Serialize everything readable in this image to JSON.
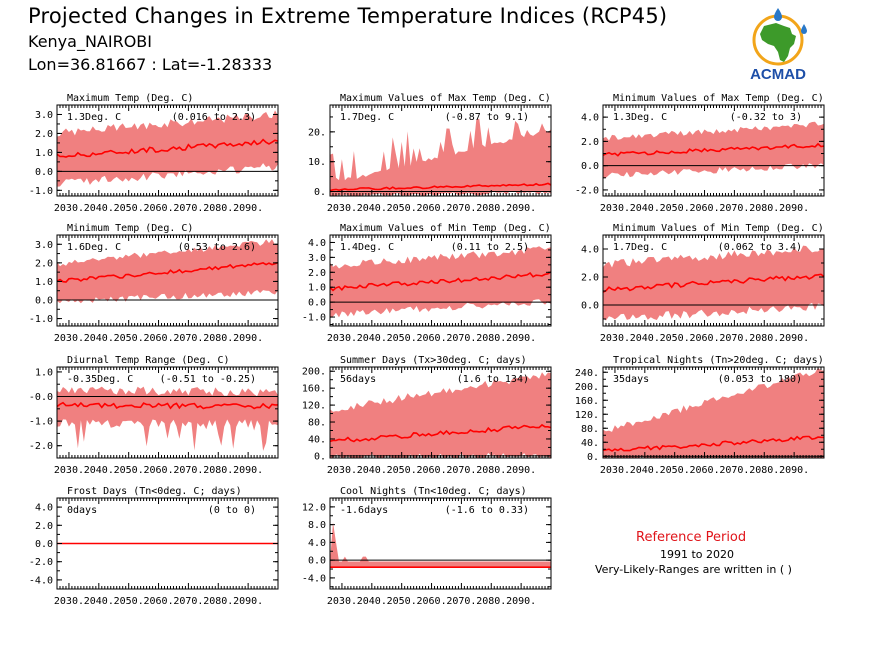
{
  "header": {
    "title": "Projected Changes in Extreme Temperature Indices (RCP45)",
    "station": "Kenya_NAIROBI",
    "coords": "Lon=36.81667 : Lat=-1.28333"
  },
  "logo": {
    "text": "ACMAD",
    "colors": {
      "text": "#1e4fa8",
      "africa": "#3d9a2a",
      "sun": "#f2a51a",
      "drop": "#2a78c8"
    }
  },
  "reference": {
    "title": "Reference Period",
    "years": "1991 to 2020",
    "note": "Very-Likely-Ranges are written in ( )"
  },
  "colors": {
    "band": "#f08080",
    "line": "#ff0000",
    "zero": "#000000"
  },
  "chart_data": [
    {
      "type": "area",
      "title": "Maximum Temp (Deg. C)",
      "change": "1.3Deg. C",
      "range": "(0.016 to 2.3)",
      "ylim": [
        -1.3,
        3.5
      ],
      "yticks": [
        -1.0,
        0.0,
        1.0,
        2.0,
        3.0
      ],
      "ytick_labels": [
        "-1.0",
        "0.0",
        "1.0",
        "2.0",
        "3.0"
      ],
      "xticks": [
        "2030.",
        "2040.",
        "2050.",
        "2060.",
        "2070.",
        "2080.",
        "2090."
      ],
      "x": [
        2026,
        2100
      ],
      "mean": [
        0.8,
        1.6
      ],
      "lower": [
        -0.4,
        0.5
      ],
      "upper": [
        1.8,
        2.8
      ],
      "noise": 0.45
    },
    {
      "type": "area",
      "title": "Maximum Values of Max Temp (Deg. C)",
      "change": "1.7Deg. C",
      "range": "(-0.87 to 9.1)",
      "ylim": [
        -1.5,
        29
      ],
      "yticks": [
        0,
        10,
        20
      ],
      "ytick_labels": [
        "0.",
        "10.",
        "20."
      ],
      "xticks": [
        "2030.",
        "2040.",
        "2050.",
        "2060.",
        "2070.",
        "2080.",
        "2090."
      ],
      "x": [
        2026,
        2100
      ],
      "mean": [
        0.6,
        2.5
      ],
      "lower": [
        -0.8,
        0.2
      ],
      "upper": [
        2,
        20
      ],
      "noise": 1.2,
      "spiky": true
    },
    {
      "type": "area",
      "title": "Minimum Values of Max Temp (Deg. C)",
      "change": "1.3Deg. C",
      "range": "(-0.32 to 3)",
      "ylim": [
        -2.5,
        5
      ],
      "yticks": [
        -2.0,
        0.0,
        2.0,
        4.0
      ],
      "ytick_labels": [
        "-2.0",
        "0.0",
        "2.0",
        "4.0"
      ],
      "xticks": [
        "2030.",
        "2040.",
        "2050.",
        "2060.",
        "2070.",
        "2080.",
        "2090."
      ],
      "x": [
        2026,
        2100
      ],
      "mean": [
        0.9,
        1.7
      ],
      "lower": [
        -0.6,
        0.3
      ],
      "upper": [
        2.0,
        3.2
      ],
      "noise": 0.5
    },
    {
      "type": "area",
      "title": "Minimum Temp (Deg. C)",
      "change": "1.6Deg. C",
      "range": "(0.53 to 2.6)",
      "ylim": [
        -1.4,
        3.5
      ],
      "yticks": [
        -1.0,
        0.0,
        1.0,
        2.0,
        3.0
      ],
      "ytick_labels": [
        "-1.0",
        "0.0",
        "1.0",
        "2.0",
        "3.0"
      ],
      "xticks": [
        "2030.",
        "2040.",
        "2050.",
        "2060.",
        "2070.",
        "2080.",
        "2090."
      ],
      "x": [
        2026,
        2100
      ],
      "mean": [
        1.0,
        2.0
      ],
      "lower": [
        0.1,
        0.6
      ],
      "upper": [
        1.8,
        3.0
      ],
      "noise": 0.35
    },
    {
      "type": "area",
      "title": "Maximum Values of Min Temp (Deg. C)",
      "change": "1.4Deg. C",
      "range": "(0.11 to 2.5)",
      "ylim": [
        -1.6,
        4.5
      ],
      "yticks": [
        -1.0,
        0.0,
        1.0,
        2.0,
        3.0,
        4.0
      ],
      "ytick_labels": [
        "-1.0",
        "0.0",
        "1.0",
        "2.0",
        "3.0",
        "4.0"
      ],
      "xticks": [
        "2030.",
        "2040.",
        "2050.",
        "2060.",
        "2070.",
        "2080.",
        "2090."
      ],
      "x": [
        2026,
        2100
      ],
      "mean": [
        0.9,
        1.9
      ],
      "lower": [
        -0.6,
        0.3
      ],
      "upper": [
        2.2,
        3.3
      ],
      "noise": 0.5
    },
    {
      "type": "area",
      "title": "Minimum Values of Min Temp (Deg. C)",
      "change": "1.7Deg. C",
      "range": "(0.062 to 3.4)",
      "ylim": [
        -1.5,
        5
      ],
      "yticks": [
        0.0,
        2.0,
        4.0
      ],
      "ytick_labels": [
        "0.0",
        "2.0",
        "4.0"
      ],
      "xticks": [
        "2030.",
        "2040.",
        "2050.",
        "2060.",
        "2070.",
        "2080.",
        "2090."
      ],
      "x": [
        2026,
        2100
      ],
      "mean": [
        1.1,
        2.1
      ],
      "lower": [
        -0.7,
        0.2
      ],
      "upper": [
        2.6,
        3.8
      ],
      "noise": 0.6
    },
    {
      "type": "area",
      "title": "Diurnal Temp Range (Deg. C)",
      "change": "-0.35Deg. C",
      "range": "(-0.51 to -0.25)",
      "ylim": [
        -2.5,
        1.2
      ],
      "yticks": [
        -2.0,
        -1.0,
        0.0,
        1.0
      ],
      "ytick_labels": [
        "-2.0",
        "-1.0",
        "-0.0",
        "1.0"
      ],
      "xticks": [
        "2030.",
        "2040.",
        "2050.",
        "2060.",
        "2070.",
        "2080.",
        "2090."
      ],
      "x": [
        2026,
        2100
      ],
      "mean": [
        -0.35,
        -0.4
      ],
      "lower": [
        -0.9,
        -0.9
      ],
      "upper": [
        0.1,
        0.0
      ],
      "noise": 0.35,
      "spiky_down": true
    },
    {
      "type": "area",
      "title": "Summer Days (Tx>30deg. C; days)",
      "change": "56days",
      "range": "(1.6 to 134)",
      "ylim": [
        -5,
        210
      ],
      "yticks": [
        0,
        40,
        80,
        120,
        160,
        200
      ],
      "ytick_labels": [
        "0.",
        "40.",
        "80.",
        "120.",
        "160.",
        "200."
      ],
      "xticks": [
        "2030.",
        "2040.",
        "2050.",
        "2060.",
        "2070.",
        "2080.",
        "2090."
      ],
      "x": [
        2026,
        2100
      ],
      "mean": [
        35,
        72
      ],
      "lower": [
        5,
        8
      ],
      "upper": [
        100,
        185
      ],
      "noise": 18
    },
    {
      "type": "area",
      "title": "Tropical Nights (Tn>20deg. C; days)",
      "change": "35days",
      "range": "(0.053 to 180)",
      "ylim": [
        -5,
        255
      ],
      "yticks": [
        0,
        40,
        80,
        120,
        160,
        200,
        240
      ],
      "ytick_labels": [
        "0.",
        "40.",
        "80.",
        "120.",
        "160.",
        "200.",
        "240."
      ],
      "xticks": [
        "2030.",
        "2040.",
        "2050.",
        "2060.",
        "2070.",
        "2080.",
        "2090."
      ],
      "x": [
        2026,
        2100
      ],
      "mean": [
        15,
        55
      ],
      "lower": [
        0,
        0
      ],
      "upper": [
        60,
        240
      ],
      "noise": 20
    },
    {
      "type": "area",
      "title": "Frost Days (Tn<0deg. C; days)",
      "change": "0days",
      "range": "(0 to 0)",
      "ylim": [
        -5,
        5
      ],
      "yticks": [
        -4.0,
        -2.0,
        0.0,
        2.0,
        4.0
      ],
      "ytick_labels": [
        "-4.0",
        "-2.0",
        "0.0",
        "2.0",
        "4.0"
      ],
      "xticks": [
        "2030.",
        "2040.",
        "2050.",
        "2060.",
        "2070.",
        "2080.",
        "2090."
      ],
      "x": [
        2026,
        2100
      ],
      "mean": [
        0,
        0
      ],
      "lower": [
        -0.02,
        -0.02
      ],
      "upper": [
        0.02,
        0.02
      ],
      "noise": 0
    },
    {
      "type": "area",
      "title": "Cool Nights (Tn<10deg. C; days)",
      "change": "-1.6days",
      "range": "(-1.6 to 0.33)",
      "ylim": [
        -6.5,
        14
      ],
      "yticks": [
        -4.0,
        0.0,
        4.0,
        8.0,
        12.0
      ],
      "ytick_labels": [
        "-4.0",
        "0.0",
        "4.0",
        "8.0",
        "12.0"
      ],
      "xticks": [
        "2030.",
        "2040.",
        "2050.",
        "2060.",
        "2070.",
        "2080.",
        "2090."
      ],
      "x": [
        2026,
        2100
      ],
      "mean": [
        -1.6,
        -1.6
      ],
      "lower": [
        -1.6,
        -1.6
      ],
      "upper": [
        -0.3,
        -0.3
      ],
      "noise": 0,
      "cool": true
    }
  ]
}
